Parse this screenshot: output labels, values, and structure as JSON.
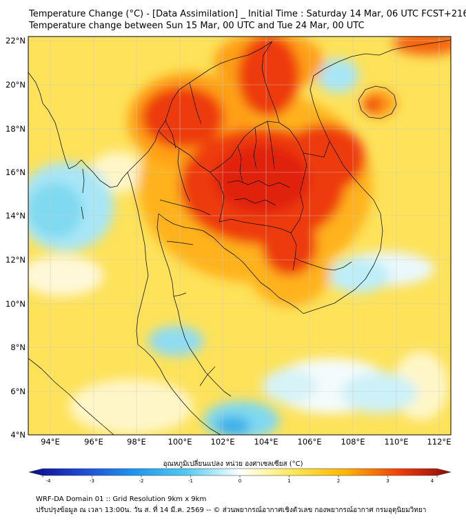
{
  "title_line1": "Temperature Change (°C) - [Data Assimilation] _ Initial Time : Saturday 14 Mar, 06 UTC FCST+216",
  "title_line2": "Temperature change between Sun 15 Mar, 00 UTC and Tue 24 Mar, 00 UTC",
  "lat_labels": [
    "22°N",
    "20°N",
    "18°N",
    "16°N",
    "14°N",
    "12°N",
    "10°N",
    "8°N",
    "6°N",
    "4°N"
  ],
  "lon_labels": [
    "94°E",
    "96°E",
    "98°E",
    "100°E",
    "102°E",
    "104°E",
    "106°E",
    "108°E",
    "110°E",
    "112°E"
  ],
  "colorbar": {
    "title": "อุณหภูมิเปลี่ยนแปลง หน่วย องศาเซลเซียส (°C)",
    "ticks": [
      "-4",
      "-3",
      "-2",
      "-1",
      "0",
      "1",
      "2",
      "3",
      "4"
    ]
  },
  "footer_line1": "WRF-DA Domain 01 :: Grid Resolution 9km x 9km",
  "footer_line2": "ปรับปรุงข้อมูล ณ เวลา 13:00น. วัน ส. ที่ 14 มี.ค. 2569 -- © ส่วนพยากรณ์อากาศเชิงตัวเลข กองพยากรณ์อากาศ กรมอุตุนิยมวิทยา",
  "colors": {
    "background_field": "#fde25a",
    "warm_peak": "#e8200a",
    "cool": "#7fd9f0"
  }
}
